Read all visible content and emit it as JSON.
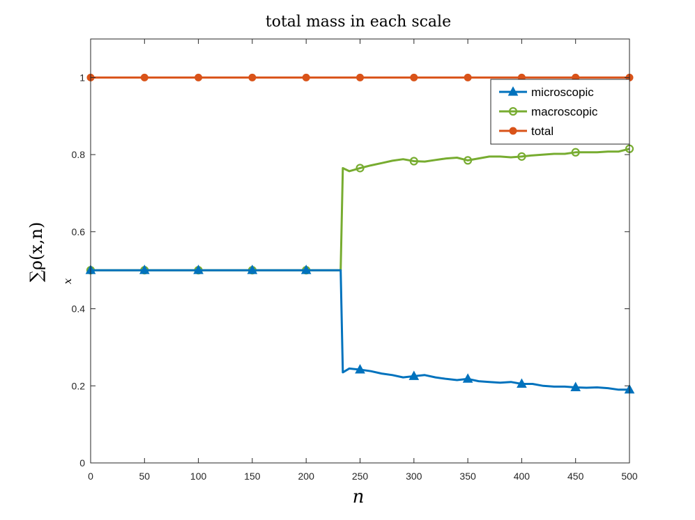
{
  "chart_data": {
    "type": "line",
    "title": "total mass in each scale",
    "xlabel": "n",
    "ylabel": "∑ρ(x,n)",
    "ylabel_subscript": "x",
    "xlim": [
      0,
      500
    ],
    "ylim": [
      0,
      1.1
    ],
    "xticks": [
      0,
      50,
      100,
      150,
      200,
      250,
      300,
      350,
      400,
      450,
      500
    ],
    "yticks": [
      0,
      0.2,
      0.4,
      0.6,
      0.8,
      1
    ],
    "grid": false,
    "legend_position": "top-right",
    "series": [
      {
        "name": "microscopic",
        "color": "#0072BD",
        "marker": "triangle",
        "x": [
          0,
          50,
          100,
          150,
          200,
          232,
          234,
          240,
          250,
          260,
          270,
          280,
          290,
          300,
          310,
          320,
          330,
          340,
          350,
          360,
          370,
          380,
          390,
          400,
          410,
          420,
          430,
          440,
          450,
          460,
          470,
          480,
          490,
          500
        ],
        "values": [
          0.5,
          0.5,
          0.5,
          0.5,
          0.5,
          0.5,
          0.235,
          0.245,
          0.242,
          0.238,
          0.232,
          0.228,
          0.222,
          0.225,
          0.228,
          0.222,
          0.218,
          0.215,
          0.218,
          0.212,
          0.21,
          0.208,
          0.21,
          0.205,
          0.205,
          0.2,
          0.198,
          0.198,
          0.196,
          0.195,
          0.196,
          0.194,
          0.19,
          0.19
        ]
      },
      {
        "name": "macroscopic",
        "color": "#77AC30",
        "marker": "circle",
        "x": [
          0,
          50,
          100,
          150,
          200,
          232,
          234,
          240,
          250,
          260,
          270,
          280,
          290,
          300,
          310,
          320,
          330,
          340,
          350,
          360,
          370,
          380,
          390,
          400,
          410,
          420,
          430,
          440,
          450,
          460,
          470,
          480,
          490,
          500
        ],
        "values": [
          0.5,
          0.5,
          0.5,
          0.5,
          0.5,
          0.5,
          0.765,
          0.757,
          0.765,
          0.772,
          0.778,
          0.784,
          0.788,
          0.783,
          0.782,
          0.786,
          0.79,
          0.792,
          0.785,
          0.79,
          0.795,
          0.795,
          0.793,
          0.795,
          0.798,
          0.8,
          0.802,
          0.802,
          0.806,
          0.806,
          0.806,
          0.808,
          0.808,
          0.815
        ]
      },
      {
        "name": "total",
        "color": "#D95319",
        "marker": "dot",
        "x": [
          0,
          50,
          100,
          150,
          200,
          232,
          250,
          300,
          350,
          400,
          450,
          500
        ],
        "values": [
          1,
          1,
          1,
          1,
          1,
          1,
          1,
          1,
          1,
          1,
          1,
          1
        ]
      }
    ]
  }
}
